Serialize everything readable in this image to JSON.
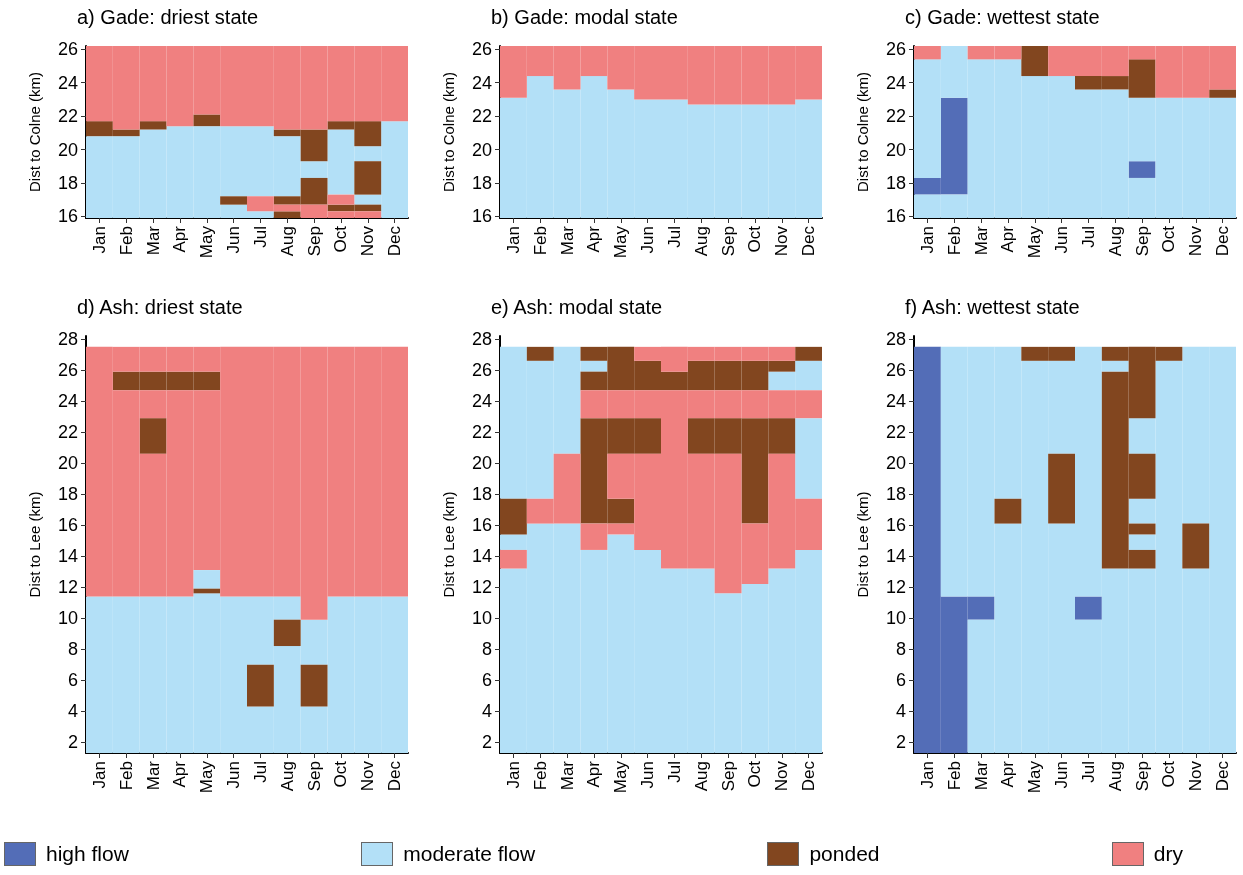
{
  "chart_data": [
    {
      "type": "bar",
      "title": "a) Gade: driest state",
      "ylabel": "Dist to Colne (km)",
      "categories": [
        "Jan",
        "Feb",
        "Mar",
        "Apr",
        "May",
        "Jun",
        "Jul",
        "Aug",
        "Sep",
        "Oct",
        "Nov",
        "Dec"
      ],
      "ylim": [
        15.9,
        26.2
      ],
      "yticks": [
        16,
        18,
        20,
        22,
        24,
        26
      ],
      "series": [
        {
          "color": "#b3e0f7",
          "x": [
            "Jan",
            "Feb",
            "Mar",
            "Apr",
            "May",
            "Jun",
            "Jun",
            "Jul",
            "Jul",
            "Aug",
            "Sep",
            "Oct",
            "Nov",
            "Nov",
            "Dec"
          ],
          "base": [
            15.9,
            15.9,
            15.9,
            15.9,
            15.9,
            15.9,
            17.2,
            15.9,
            17.2,
            17.2,
            18.3,
            17.3,
            16.7,
            19.3,
            15.9
          ],
          "values": [
            4.9,
            4.9,
            5.3,
            5.5,
            5.5,
            0.8,
            4.2,
            0.4,
            4.2,
            3.6,
            1.0,
            3.9,
            0.6,
            0.9,
            5.8
          ]
        },
        {
          "color": "#82461f",
          "x": [
            "Jan",
            "Feb",
            "Mar",
            "May",
            "Jun",
            "Aug",
            "Aug",
            "Aug",
            "Sep",
            "Sep",
            "Oct",
            "Oct",
            "Nov",
            "Nov",
            "Nov"
          ],
          "base": [
            20.8,
            20.8,
            21.2,
            21.4,
            16.7,
            15.9,
            16.7,
            20.8,
            16.7,
            19.3,
            16.3,
            21.2,
            16.3,
            17.3,
            20.2
          ],
          "values": [
            0.9,
            0.4,
            0.5,
            0.7,
            0.5,
            0.4,
            0.5,
            0.4,
            1.6,
            1.9,
            0.4,
            0.5,
            0.4,
            2.0,
            1.5
          ]
        },
        {
          "color": "#f08080",
          "x": [
            "Jan",
            "Feb",
            "Mar",
            "Apr",
            "May",
            "Jun",
            "Jul",
            "Jul",
            "Aug",
            "Aug",
            "Sep",
            "Sep",
            "Oct",
            "Oct",
            "Oct",
            "Nov",
            "Nov",
            "Dec"
          ],
          "base": [
            21.7,
            21.2,
            21.7,
            21.4,
            22.1,
            21.4,
            16.3,
            21.4,
            16.3,
            21.2,
            15.9,
            21.2,
            15.9,
            16.7,
            21.7,
            15.9,
            21.7,
            21.7
          ],
          "values": [
            4.5,
            5.0,
            4.5,
            4.8,
            4.1,
            4.8,
            0.9,
            4.8,
            0.4,
            5.0,
            0.8,
            5.0,
            0.4,
            0.6,
            4.5,
            0.4,
            4.5,
            4.5
          ]
        }
      ]
    },
    {
      "type": "bar",
      "title": "b) Gade: modal state",
      "ylabel": "Dist to Colne (km)",
      "categories": [
        "Jan",
        "Feb",
        "Mar",
        "Apr",
        "May",
        "Jun",
        "Jul",
        "Aug",
        "Sep",
        "Oct",
        "Nov",
        "Dec"
      ],
      "ylim": [
        15.9,
        26.2
      ],
      "yticks": [
        16,
        18,
        20,
        22,
        24,
        26
      ],
      "series": [
        {
          "color": "#b3e0f7",
          "base": [
            15.9,
            15.9,
            15.9,
            15.9,
            15.9,
            15.9,
            15.9,
            15.9,
            15.9,
            15.9,
            15.9,
            15.9
          ],
          "values": [
            7.2,
            8.5,
            7.7,
            8.5,
            7.7,
            7.1,
            7.1,
            6.8,
            6.8,
            6.8,
            6.8,
            7.1
          ]
        },
        {
          "color": "#f08080",
          "base": [
            23.1,
            24.4,
            23.6,
            24.4,
            23.6,
            23.0,
            23.0,
            22.7,
            22.7,
            22.7,
            22.7,
            23.0
          ],
          "values": [
            3.1,
            1.8,
            2.6,
            1.8,
            2.6,
            3.2,
            3.2,
            3.5,
            3.5,
            3.5,
            3.5,
            3.2
          ]
        }
      ]
    },
    {
      "type": "bar",
      "title": "c) Gade: wettest state",
      "ylabel": "Dist to Colne (km)",
      "categories": [
        "Jan",
        "Feb",
        "Mar",
        "Apr",
        "May",
        "Jun",
        "Jul",
        "Aug",
        "Sep",
        "Oct",
        "Nov",
        "Dec"
      ],
      "ylim": [
        15.9,
        26.2
      ],
      "yticks": [
        16,
        18,
        20,
        22,
        24,
        26
      ],
      "legend": "bottom",
      "series": [
        {
          "name": "high flow",
          "color": "#536db7",
          "x": [
            "Jan",
            "Feb",
            "Sep"
          ],
          "base": [
            17.3,
            17.3,
            18.3
          ],
          "values": [
            1.0,
            5.8,
            1.0
          ]
        },
        {
          "name": "moderate flow",
          "color": "#b3e0f7",
          "x": [
            "Jan",
            "Jan",
            "Feb",
            "Feb",
            "Mar",
            "Apr",
            "May",
            "Jun",
            "Jul",
            "Aug",
            "Sep",
            "Sep",
            "Oct",
            "Nov",
            "Dec"
          ],
          "base": [
            15.9,
            18.3,
            15.9,
            23.1,
            15.9,
            15.9,
            15.9,
            15.9,
            15.9,
            15.9,
            15.9,
            19.3,
            15.9,
            15.9,
            15.9
          ],
          "values": [
            1.4,
            7.1,
            1.4,
            3.1,
            9.5,
            9.5,
            8.5,
            8.5,
            7.7,
            7.7,
            2.4,
            3.8,
            7.2,
            7.2,
            7.2
          ]
        },
        {
          "name": "ponded",
          "color": "#82461f",
          "x": [
            "May",
            "Jul",
            "Aug",
            "Sep",
            "Dec"
          ],
          "base": [
            24.4,
            23.6,
            23.6,
            23.1,
            23.1
          ],
          "values": [
            1.8,
            0.8,
            0.8,
            2.3,
            0.5
          ]
        },
        {
          "name": "dry",
          "color": "#f08080",
          "x": [
            "Jan",
            "Mar",
            "Apr",
            "Jun",
            "Jul",
            "Aug",
            "Sep",
            "Oct",
            "Nov",
            "Dec"
          ],
          "base": [
            25.4,
            25.4,
            25.4,
            24.4,
            24.4,
            24.4,
            25.4,
            23.1,
            23.1,
            23.6
          ],
          "values": [
            0.8,
            0.8,
            0.8,
            1.8,
            1.8,
            1.8,
            0.8,
            3.1,
            3.1,
            2.6
          ]
        }
      ]
    },
    {
      "type": "bar",
      "title": "d) Ash: driest state",
      "ylabel": "Dist to Lee (km)",
      "categories": [
        "Jan",
        "Feb",
        "Mar",
        "Apr",
        "May",
        "Jun",
        "Jul",
        "Aug",
        "Sep",
        "Oct",
        "Nov",
        "Dec"
      ],
      "ylim": [
        1.3,
        28.2
      ],
      "yticks": [
        2,
        4,
        6,
        8,
        10,
        12,
        14,
        16,
        18,
        20,
        22,
        24,
        26,
        28
      ],
      "series": [
        {
          "color": "#b3e0f7",
          "x": [
            "Jan",
            "Feb",
            "Mar",
            "Apr",
            "May",
            "May",
            "Jun",
            "Jul",
            "Jul",
            "Aug",
            "Aug",
            "Sep",
            "Sep",
            "Oct",
            "Nov",
            "Dec"
          ],
          "base": [
            1.3,
            1.3,
            1.3,
            1.3,
            1.3,
            11.9,
            1.3,
            1.3,
            7.0,
            1.3,
            9.9,
            1.3,
            7.0,
            1.3,
            1.3,
            1.3
          ],
          "values": [
            10.1,
            10.1,
            10.1,
            10.1,
            10.3,
            1.2,
            10.1,
            3.0,
            4.4,
            6.9,
            1.5,
            3.0,
            2.9,
            10.1,
            10.1,
            10.1
          ]
        },
        {
          "color": "#82461f",
          "x": [
            "Feb",
            "Mar",
            "Mar",
            "Apr",
            "May",
            "May",
            "Jul",
            "Aug",
            "Sep"
          ],
          "base": [
            24.7,
            20.6,
            24.7,
            24.7,
            11.6,
            24.7,
            4.3,
            8.2,
            4.3
          ],
          "values": [
            1.2,
            2.3,
            1.2,
            1.2,
            0.3,
            1.2,
            2.7,
            1.7,
            2.7
          ]
        },
        {
          "color": "#f08080",
          "x": [
            "Jan",
            "Feb",
            "Feb",
            "Mar",
            "Mar",
            "Mar",
            "Apr",
            "Apr",
            "May",
            "May",
            "Jun",
            "Jul",
            "Aug",
            "Sep",
            "Oct",
            "Nov",
            "Dec"
          ],
          "base": [
            11.4,
            11.4,
            25.9,
            11.4,
            22.9,
            25.9,
            11.4,
            25.9,
            13.1,
            25.9,
            11.4,
            11.4,
            11.4,
            9.9,
            11.4,
            11.4,
            11.4
          ],
          "values": [
            16.1,
            13.3,
            1.6,
            9.2,
            1.8,
            1.6,
            13.3,
            1.6,
            11.6,
            1.6,
            16.1,
            16.1,
            16.1,
            17.6,
            16.1,
            16.1,
            16.1
          ]
        }
      ]
    },
    {
      "type": "bar",
      "title": "e) Ash: modal state",
      "ylabel": "Dist to Lee (km)",
      "categories": [
        "Jan",
        "Feb",
        "Mar",
        "Apr",
        "May",
        "Jun",
        "Jul",
        "Aug",
        "Sep",
        "Oct",
        "Nov",
        "Dec"
      ],
      "ylim": [
        1.3,
        28.2
      ],
      "yticks": [
        2,
        4,
        6,
        8,
        10,
        12,
        14,
        16,
        18,
        20,
        22,
        24,
        26,
        28
      ],
      "series": [
        {
          "color": "#b3e0f7",
          "x": [
            "Jan",
            "Jan",
            "Jan",
            "Feb",
            "Feb",
            "Mar",
            "Mar",
            "Apr",
            "Apr",
            "May",
            "Jun",
            "Jul",
            "Aug",
            "Sep",
            "Oct",
            "Nov",
            "Nov",
            "Dec",
            "Dec",
            "Dec"
          ],
          "base": [
            1.3,
            14.4,
            17.7,
            1.3,
            17.7,
            1.3,
            20.6,
            1.3,
            25.9,
            1.3,
            1.3,
            1.3,
            1.3,
            1.3,
            1.3,
            1.3,
            24.7,
            1.3,
            17.7,
            24.7
          ],
          "values": [
            11.9,
            1.0,
            9.8,
            14.8,
            8.9,
            14.8,
            6.9,
            13.1,
            0.7,
            14.1,
            13.1,
            11.9,
            11.9,
            10.3,
            10.9,
            11.9,
            1.2,
            13.1,
            5.2,
            1.9
          ]
        },
        {
          "color": "#82461f",
          "x": [
            "Jan",
            "Feb",
            "Apr",
            "Apr",
            "Apr",
            "May",
            "May",
            "May",
            "Jun",
            "Jun",
            "Jul",
            "Aug",
            "Aug",
            "Sep",
            "Sep",
            "Oct",
            "Oct",
            "Nov",
            "Nov",
            "Dec"
          ],
          "base": [
            15.4,
            26.6,
            16.1,
            24.7,
            26.6,
            16.1,
            20.6,
            24.7,
            20.6,
            24.7,
            24.7,
            20.6,
            24.7,
            20.6,
            24.7,
            16.1,
            24.7,
            20.6,
            25.9,
            26.6
          ],
          "values": [
            2.3,
            0.9,
            6.8,
            1.2,
            0.9,
            1.6,
            2.3,
            2.8,
            2.3,
            1.9,
            1.2,
            2.3,
            1.9,
            2.3,
            1.9,
            6.8,
            1.9,
            2.3,
            0.7,
            0.9
          ]
        },
        {
          "color": "#f08080",
          "x": [
            "Jan",
            "Feb",
            "Mar",
            "Apr",
            "Apr",
            "May",
            "May",
            "May",
            "Jun",
            "Jun",
            "Jun",
            "Jul",
            "Jul",
            "Aug",
            "Aug",
            "Aug",
            "Sep",
            "Sep",
            "Sep",
            "Oct",
            "Oct",
            "Oct",
            "Nov",
            "Nov",
            "Nov",
            "Dec",
            "Dec"
          ],
          "base": [
            13.2,
            16.1,
            16.1,
            14.4,
            22.9,
            15.4,
            17.7,
            22.9,
            14.4,
            22.9,
            26.6,
            13.2,
            25.9,
            13.2,
            22.9,
            26.6,
            11.6,
            22.9,
            26.6,
            12.2,
            22.9,
            26.6,
            13.2,
            22.9,
            26.6,
            14.4,
            22.9
          ],
          "values": [
            1.2,
            1.6,
            4.5,
            1.7,
            1.8,
            0.7,
            2.9,
            1.8,
            6.2,
            1.8,
            0.9,
            11.5,
            1.6,
            7.4,
            1.8,
            0.9,
            9.0,
            1.8,
            0.9,
            3.9,
            1.8,
            0.9,
            7.4,
            1.8,
            0.9,
            3.3,
            1.8
          ]
        }
      ]
    },
    {
      "type": "bar",
      "title": "f) Ash: wettest state",
      "ylabel": "Dist to Lee (km)",
      "categories": [
        "Jan",
        "Feb",
        "Mar",
        "Apr",
        "May",
        "Jun",
        "Jul",
        "Aug",
        "Sep",
        "Oct",
        "Nov",
        "Dec"
      ],
      "ylim": [
        1.3,
        28.2
      ],
      "yticks": [
        2,
        4,
        6,
        8,
        10,
        12,
        14,
        16,
        18,
        20,
        22,
        24,
        26,
        28
      ],
      "series": [
        {
          "color": "#536db7",
          "x": [
            "Jan",
            "Feb",
            "Mar",
            "Jul"
          ],
          "base": [
            1.3,
            1.3,
            9.9,
            9.9
          ],
          "values": [
            26.2,
            10.1,
            1.5,
            1.5
          ]
        },
        {
          "color": "#b3e0f7",
          "x": [
            "Feb",
            "Mar",
            "Mar",
            "Apr",
            "Apr",
            "May",
            "Jun",
            "Jun",
            "Jul",
            "Jul",
            "Aug",
            "Aug",
            "Sep",
            "Sep",
            "Sep",
            "Sep",
            "Oct",
            "Nov",
            "Nov",
            "Dec"
          ],
          "base": [
            11.4,
            1.3,
            11.4,
            1.3,
            17.7,
            1.3,
            1.3,
            20.6,
            1.3,
            11.4,
            1.3,
            25.9,
            1.3,
            14.4,
            16.1,
            20.6,
            1.3,
            1.3,
            16.1,
            1.3
          ],
          "values": [
            16.1,
            8.6,
            16.1,
            14.8,
            9.8,
            25.3,
            14.8,
            6.0,
            8.6,
            16.1,
            11.9,
            0.7,
            11.9,
            1.0,
            1.6,
            2.3,
            25.3,
            11.9,
            11.4,
            26.2
          ]
        },
        {
          "color": "#82461f",
          "x": [
            "Apr",
            "May",
            "Jun",
            "Jun",
            "Aug",
            "Aug",
            "Sep",
            "Sep",
            "Sep",
            "Sep",
            "Oct",
            "Nov"
          ],
          "base": [
            16.1,
            26.6,
            16.1,
            26.6,
            13.2,
            26.6,
            13.2,
            15.4,
            17.7,
            22.9,
            26.6,
            13.2
          ],
          "values": [
            1.6,
            0.9,
            4.5,
            0.9,
            12.7,
            0.9,
            1.2,
            0.7,
            2.9,
            4.6,
            0.9,
            2.9
          ]
        }
      ]
    }
  ]
}
